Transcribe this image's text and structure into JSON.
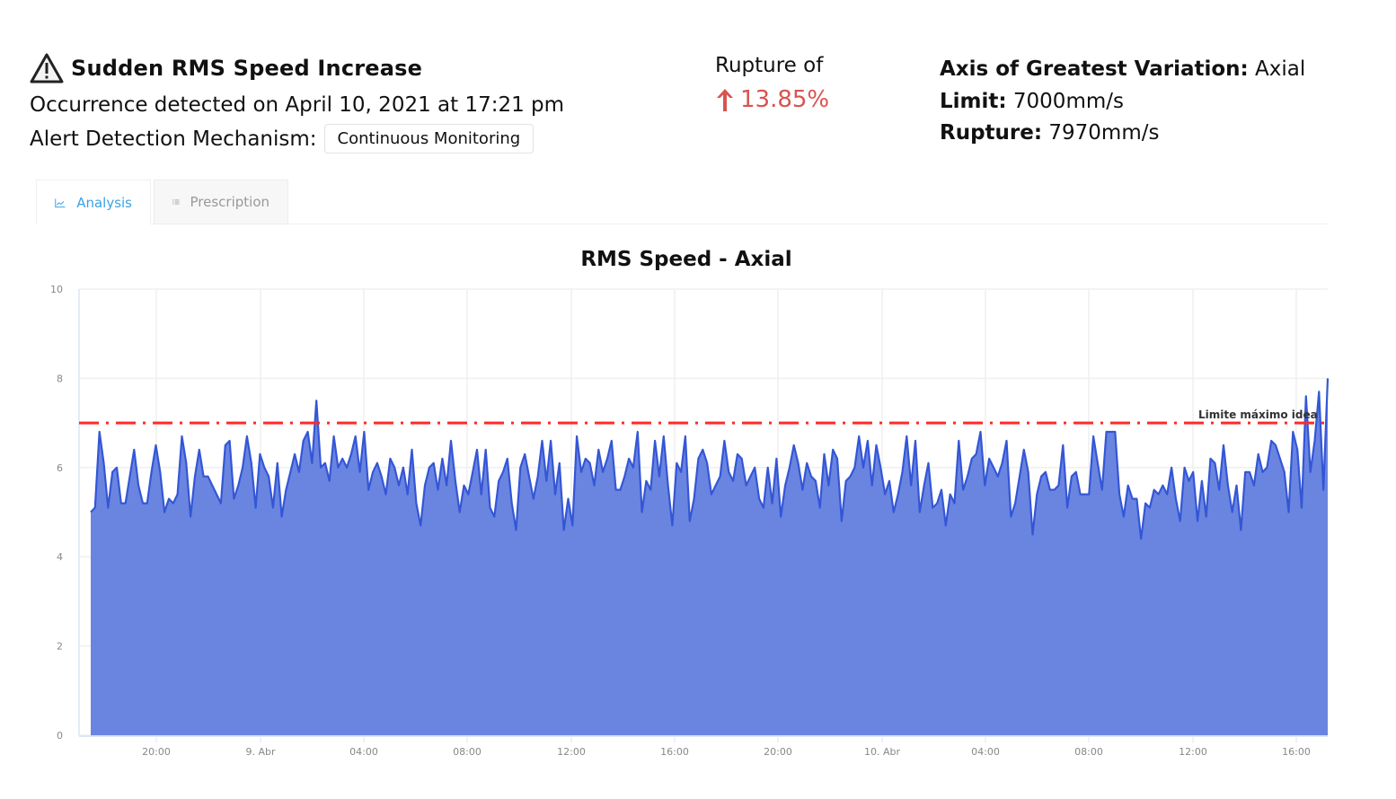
{
  "alert": {
    "icon": "warning-triangle-icon",
    "title": "Sudden RMS Speed Increase",
    "occurrence": "Occurrence detected on April 10, 2021 at 17:21 pm",
    "mechanism_label": "Alert Detection Mechanism:",
    "mechanism_value": "Continuous Monitoring"
  },
  "rupture": {
    "label": "Rupture of",
    "value": "13.85%",
    "direction_icon": "arrow-up-icon",
    "color": "#d9534f"
  },
  "details": {
    "axis_label": "Axis of Greatest Variation:",
    "axis_value": "Axial",
    "limit_label": "Limit:",
    "limit_value": "7000mm/s",
    "rupture_label": "Rupture:",
    "rupture_value": "7970mm/s"
  },
  "tabs": [
    {
      "label": "Analysis",
      "icon": "line-chart-icon",
      "active": true
    },
    {
      "label": "Prescription",
      "icon": "list-icon",
      "active": false
    }
  ],
  "chart_data": {
    "type": "area",
    "title": "RMS Speed - Axial",
    "xlabel": "",
    "ylabel": "",
    "ylim": [
      0,
      10
    ],
    "y_ticks": [
      "0",
      "2",
      "4",
      "6",
      "8",
      "10"
    ],
    "x_ticks": [
      "20:00",
      "9. Abr",
      "04:00",
      "08:00",
      "12:00",
      "16:00",
      "20:00",
      "10. Abr",
      "04:00",
      "08:00",
      "12:00",
      "16:00"
    ],
    "grid": true,
    "legend": null,
    "fill_color": "#6a85e0",
    "line_color": "#3456d6",
    "limit_line": {
      "value": 7.0,
      "label": "Limite máximo idea",
      "color": "#ff2a2a",
      "style": "dash-dot"
    },
    "series": [
      {
        "name": "RMS Speed - Axial",
        "values": [
          5.0,
          5.1,
          6.8,
          6.1,
          5.1,
          5.9,
          6.0,
          5.2,
          5.2,
          5.8,
          6.4,
          5.6,
          5.2,
          5.2,
          5.9,
          6.5,
          5.9,
          5.0,
          5.3,
          5.2,
          5.4,
          6.7,
          6.1,
          4.9,
          5.8,
          6.4,
          5.8,
          5.8,
          5.6,
          5.4,
          5.2,
          6.5,
          6.6,
          5.3,
          5.6,
          6.0,
          6.7,
          6.1,
          5.1,
          6.3,
          6.0,
          5.8,
          5.1,
          6.1,
          4.9,
          5.5,
          5.9,
          6.3,
          5.9,
          6.6,
          6.8,
          6.1,
          7.5,
          6.0,
          6.1,
          5.7,
          6.7,
          6.0,
          6.2,
          6.0,
          6.3,
          6.7,
          5.9,
          6.8,
          5.5,
          5.9,
          6.1,
          5.8,
          5.4,
          6.2,
          6.0,
          5.6,
          6.0,
          5.4,
          6.4,
          5.2,
          4.7,
          5.6,
          6.0,
          6.1,
          5.5,
          6.2,
          5.6,
          6.6,
          5.7,
          5.0,
          5.6,
          5.4,
          5.9,
          6.4,
          5.4,
          6.4,
          5.1,
          4.9,
          5.7,
          5.9,
          6.2,
          5.2,
          4.6,
          6.0,
          6.3,
          5.8,
          5.3,
          5.8,
          6.6,
          5.7,
          6.6,
          5.4,
          6.1,
          4.6,
          5.3,
          4.7,
          6.7,
          5.9,
          6.2,
          6.1,
          5.6,
          6.4,
          5.9,
          6.2,
          6.6,
          5.5,
          5.5,
          5.8,
          6.2,
          6.0,
          6.8,
          5.0,
          5.7,
          5.5,
          6.6,
          5.8,
          6.7,
          5.6,
          4.7,
          6.1,
          5.9,
          6.7,
          4.8,
          5.3,
          6.2,
          6.4,
          6.1,
          5.4,
          5.6,
          5.8,
          6.6,
          5.9,
          5.7,
          6.3,
          6.2,
          5.6,
          5.8,
          6.0,
          5.3,
          5.1,
          6.0,
          5.2,
          6.2,
          4.9,
          5.6,
          6.0,
          6.5,
          6.1,
          5.5,
          6.1,
          5.8,
          5.7,
          5.1,
          6.3,
          5.6,
          6.4,
          6.2,
          4.8,
          5.7,
          5.8,
          6.0,
          6.7,
          6.0,
          6.6,
          5.6,
          6.5,
          6.0,
          5.4,
          5.7,
          5.0,
          5.4,
          5.9,
          6.7,
          5.6,
          6.6,
          5.0,
          5.6,
          6.1,
          5.1,
          5.2,
          5.5,
          4.7,
          5.4,
          5.2,
          6.6,
          5.5,
          5.8,
          6.2,
          6.3,
          6.8,
          5.6,
          6.2,
          6.0,
          5.8,
          6.1,
          6.6,
          4.9,
          5.2,
          5.8,
          6.4,
          5.9,
          4.5,
          5.4,
          5.8,
          5.9,
          5.5,
          5.5,
          5.6,
          6.5,
          5.1,
          5.8,
          5.9,
          5.4,
          5.4,
          5.4,
          6.7,
          6.1,
          5.5,
          6.8,
          6.8,
          6.8,
          5.4,
          4.9,
          5.6,
          5.3,
          5.3,
          4.4,
          5.2,
          5.1,
          5.5,
          5.4,
          5.6,
          5.4,
          6.0,
          5.3,
          4.8,
          6.0,
          5.7,
          5.9,
          4.8,
          5.7,
          4.9,
          6.2,
          6.1,
          5.5,
          6.5,
          5.6,
          5.0,
          5.6,
          4.6,
          5.9,
          5.9,
          5.6,
          6.3,
          5.9,
          6.0,
          6.6,
          6.5,
          6.2,
          5.9,
          5.0,
          6.8,
          6.4,
          5.1,
          7.6,
          5.9,
          6.6,
          7.7,
          5.5,
          8.0
        ]
      }
    ]
  }
}
